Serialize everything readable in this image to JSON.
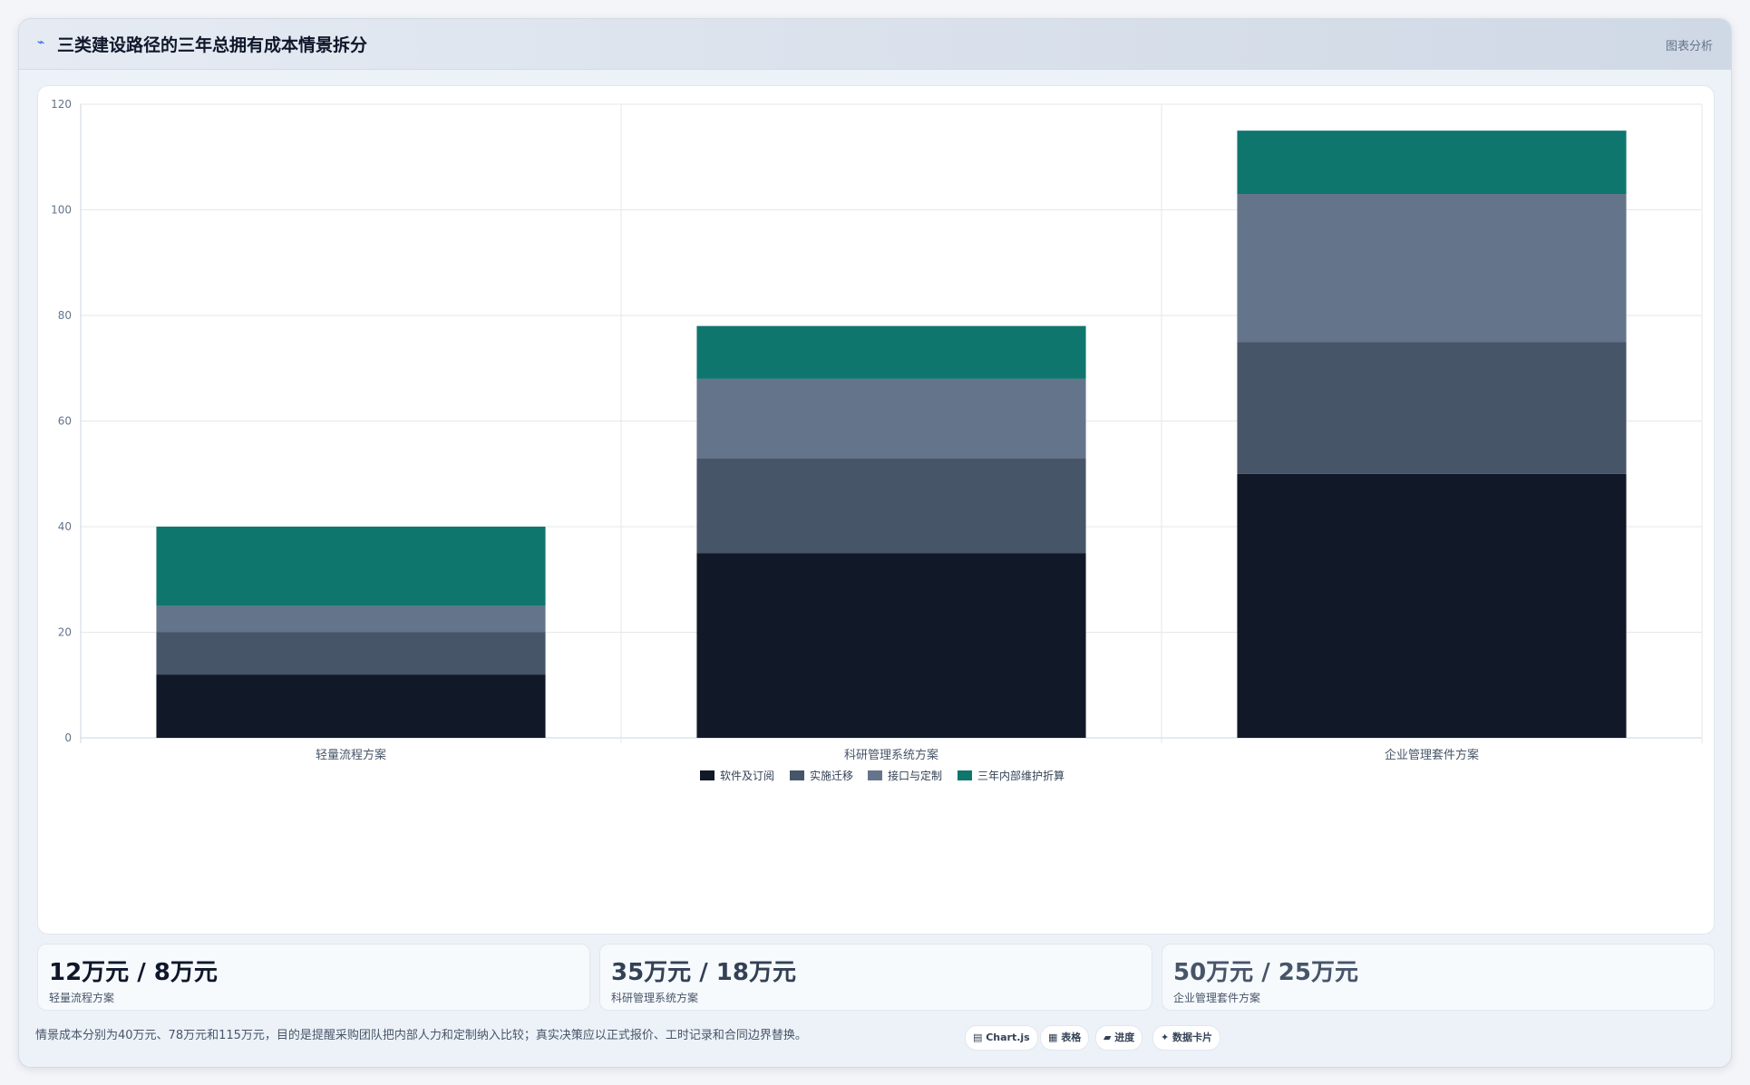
{
  "header": {
    "icon": "chart-icon",
    "title": "三类建设路径的三年总拥有成本情景拆分",
    "right_label": "图表分析"
  },
  "chart_data": {
    "type": "bar",
    "stacked": true,
    "categories": [
      "轻量流程方案",
      "科研管理系统方案",
      "企业管理套件方案"
    ],
    "series": [
      {
        "name": "软件及订阅",
        "values": [
          12,
          35,
          50
        ],
        "color": "#111827"
      },
      {
        "name": "实施迁移",
        "values": [
          8,
          18,
          25
        ],
        "color": "#475569"
      },
      {
        "name": "接口与定制",
        "values": [
          5,
          15,
          28
        ],
        "color": "#64748b"
      },
      {
        "name": "三年内部维护折算",
        "values": [
          15,
          10,
          12
        ],
        "color": "#0f766e"
      }
    ],
    "yticks": [
      0,
      20,
      40,
      60,
      80,
      100,
      120
    ],
    "ylim": [
      0,
      120
    ],
    "grid": true,
    "legend_position": "bottom-center"
  },
  "stats": [
    {
      "value": "12万元 / 8万元",
      "label": "轻量流程方案",
      "color": "#0f172a"
    },
    {
      "value": "35万元 / 18万元",
      "label": "科研管理系统方案",
      "color": "#334155"
    },
    {
      "value": "50万元 / 25万元",
      "label": "企业管理套件方案",
      "color": "#475569"
    }
  ],
  "footnote": "情景成本分别为40万元、78万元和115万元，目的是提醒采购团队把内部人力和定制纳入比较；真实决策应以正式报价、工时记录和合同边界替换。",
  "chips": [
    "▤ Chart.js",
    "▦ 表格",
    "▰ 进度",
    "✦ 数据卡片"
  ]
}
